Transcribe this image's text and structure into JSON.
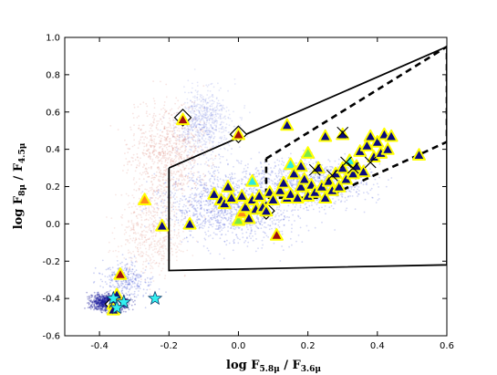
{
  "chart_data": {
    "type": "scatter",
    "title": "",
    "xlabel": {
      "prefix": "log F",
      "sub1": "5.8μ",
      "mid": " / F",
      "sub2": "3.6μ"
    },
    "ylabel": {
      "prefix": "log F",
      "sub1": "8μ",
      "mid": " / F",
      "sub2": "4.5μ"
    },
    "xlim": [
      -0.5,
      0.6
    ],
    "ylim": [
      -0.6,
      1.0
    ],
    "xticks": [
      "-0.4",
      "-0.2",
      "0.0",
      "0.2",
      "0.4",
      "0.6"
    ],
    "xtick_values": [
      -0.4,
      -0.2,
      0.0,
      0.2,
      0.4,
      0.6
    ],
    "yticks": [
      "1.0",
      "0.8",
      "0.6",
      "0.4",
      "0.2",
      "0.0",
      "-0.2",
      "-0.4",
      "-0.6"
    ],
    "ytick_values": [
      1.0,
      0.8,
      0.6,
      0.4,
      0.2,
      0.0,
      -0.2,
      -0.4,
      -0.6
    ],
    "grid": false,
    "legend": "none",
    "colors": {
      "background_cloud_blue": "#3a4fd6",
      "background_cloud_red": "#d46a5a",
      "triangle_edge": "#ffff00",
      "dark_navy": "#0a0a80",
      "cyan": "#2fe8e0",
      "orange": "#ff8c1a",
      "dark_red": "#a01010",
      "green": "#7ce84a",
      "star": "#33f0f0",
      "region_line": "#000000"
    },
    "regions": {
      "solid_wedge": [
        [
          -0.2,
          0.3
        ],
        [
          0.6,
          0.95
        ],
        [
          0.6,
          -0.22
        ],
        [
          -0.2,
          -0.25
        ],
        [
          -0.2,
          0.3
        ]
      ],
      "dashed_wedge": [
        [
          0.08,
          0.35
        ],
        [
          0.6,
          0.95
        ],
        [
          0.6,
          0.44
        ],
        [
          0.25,
          0.14
        ],
        [
          0.08,
          0.14
        ],
        [
          0.08,
          0.35
        ]
      ]
    },
    "triangles": [
      {
        "x": -0.36,
        "y": -0.43,
        "c": "dark_navy"
      },
      {
        "x": -0.36,
        "y": -0.46,
        "c": "dark_navy"
      },
      {
        "x": -0.35,
        "y": -0.38,
        "c": "dark_navy"
      },
      {
        "x": -0.34,
        "y": -0.27,
        "c": "dark_red"
      },
      {
        "x": -0.27,
        "y": 0.13,
        "c": "orange"
      },
      {
        "x": -0.22,
        "y": -0.01,
        "c": "dark_navy"
      },
      {
        "x": -0.16,
        "y": 0.56,
        "c": "dark_red"
      },
      {
        "x": -0.14,
        "y": 0.0,
        "c": "dark_navy"
      },
      {
        "x": -0.07,
        "y": 0.16,
        "c": "dark_navy"
      },
      {
        "x": -0.05,
        "y": 0.13,
        "c": "dark_navy"
      },
      {
        "x": -0.04,
        "y": 0.11,
        "c": "dark_navy"
      },
      {
        "x": -0.03,
        "y": 0.2,
        "c": "dark_navy"
      },
      {
        "x": -0.02,
        "y": 0.14,
        "c": "dark_navy"
      },
      {
        "x": 0.0,
        "y": 0.02,
        "c": "green"
      },
      {
        "x": 0.0,
        "y": 0.48,
        "c": "dark_red"
      },
      {
        "x": 0.01,
        "y": 0.06,
        "c": "orange"
      },
      {
        "x": 0.01,
        "y": 0.15,
        "c": "dark_navy"
      },
      {
        "x": 0.02,
        "y": 0.09,
        "c": "dark_navy"
      },
      {
        "x": 0.03,
        "y": 0.03,
        "c": "dark_navy"
      },
      {
        "x": 0.04,
        "y": 0.23,
        "c": "cyan"
      },
      {
        "x": 0.04,
        "y": 0.13,
        "c": "dark_navy"
      },
      {
        "x": 0.05,
        "y": 0.08,
        "c": "dark_navy"
      },
      {
        "x": 0.06,
        "y": 0.15,
        "c": "dark_navy"
      },
      {
        "x": 0.07,
        "y": 0.09,
        "c": "dark_navy"
      },
      {
        "x": 0.08,
        "y": 0.07,
        "c": "dark_navy"
      },
      {
        "x": 0.09,
        "y": 0.17,
        "c": "dark_navy"
      },
      {
        "x": 0.1,
        "y": 0.13,
        "c": "dark_navy"
      },
      {
        "x": 0.11,
        "y": -0.06,
        "c": "dark_red"
      },
      {
        "x": 0.12,
        "y": 0.18,
        "c": "dark_navy"
      },
      {
        "x": 0.13,
        "y": 0.22,
        "c": "dark_navy"
      },
      {
        "x": 0.14,
        "y": 0.14,
        "c": "dark_navy"
      },
      {
        "x": 0.14,
        "y": 0.53,
        "c": "dark_navy"
      },
      {
        "x": 0.15,
        "y": 0.32,
        "c": "cyan"
      },
      {
        "x": 0.15,
        "y": 0.16,
        "c": "dark_navy"
      },
      {
        "x": 0.16,
        "y": 0.27,
        "c": "dark_navy"
      },
      {
        "x": 0.17,
        "y": 0.14,
        "c": "dark_navy"
      },
      {
        "x": 0.18,
        "y": 0.2,
        "c": "dark_navy"
      },
      {
        "x": 0.18,
        "y": 0.31,
        "c": "dark_navy"
      },
      {
        "x": 0.19,
        "y": 0.24,
        "c": "dark_navy"
      },
      {
        "x": 0.2,
        "y": 0.15,
        "c": "dark_navy"
      },
      {
        "x": 0.2,
        "y": 0.38,
        "c": "green"
      },
      {
        "x": 0.21,
        "y": 0.21,
        "c": "dark_navy"
      },
      {
        "x": 0.22,
        "y": 0.17,
        "c": "dark_navy"
      },
      {
        "x": 0.23,
        "y": 0.3,
        "c": "dark_navy"
      },
      {
        "x": 0.24,
        "y": 0.2,
        "c": "dark_navy"
      },
      {
        "x": 0.25,
        "y": 0.14,
        "c": "dark_navy"
      },
      {
        "x": 0.25,
        "y": 0.47,
        "c": "dark_navy"
      },
      {
        "x": 0.26,
        "y": 0.23,
        "c": "dark_navy"
      },
      {
        "x": 0.27,
        "y": 0.18,
        "c": "dark_navy"
      },
      {
        "x": 0.28,
        "y": 0.27,
        "c": "dark_navy"
      },
      {
        "x": 0.29,
        "y": 0.2,
        "c": "dark_navy"
      },
      {
        "x": 0.3,
        "y": 0.48,
        "c": "dark_navy"
      },
      {
        "x": 0.3,
        "y": 0.3,
        "c": "dark_navy"
      },
      {
        "x": 0.31,
        "y": 0.24,
        "c": "dark_navy"
      },
      {
        "x": 0.32,
        "y": 0.34,
        "c": "cyan"
      },
      {
        "x": 0.33,
        "y": 0.27,
        "c": "dark_navy"
      },
      {
        "x": 0.34,
        "y": 0.31,
        "c": "dark_navy"
      },
      {
        "x": 0.35,
        "y": 0.39,
        "c": "dark_navy"
      },
      {
        "x": 0.36,
        "y": 0.28,
        "c": "dark_navy"
      },
      {
        "x": 0.37,
        "y": 0.42,
        "c": "dark_navy"
      },
      {
        "x": 0.38,
        "y": 0.47,
        "c": "dark_navy"
      },
      {
        "x": 0.39,
        "y": 0.36,
        "c": "dark_navy"
      },
      {
        "x": 0.4,
        "y": 0.44,
        "c": "dark_navy"
      },
      {
        "x": 0.41,
        "y": 0.38,
        "c": "dark_navy"
      },
      {
        "x": 0.42,
        "y": 0.48,
        "c": "dark_navy"
      },
      {
        "x": 0.43,
        "y": 0.4,
        "c": "dark_navy"
      },
      {
        "x": 0.44,
        "y": 0.47,
        "c": "dark_navy"
      },
      {
        "x": 0.52,
        "y": 0.37,
        "c": "dark_navy"
      }
    ],
    "diamonds": [
      {
        "x": -0.16,
        "y": 0.57
      },
      {
        "x": 0.0,
        "y": 0.48
      },
      {
        "x": 0.08,
        "y": 0.07
      },
      {
        "x": -0.36,
        "y": -0.43
      }
    ],
    "crosses": [
      {
        "x": 0.3,
        "y": 0.49
      },
      {
        "x": 0.31,
        "y": 0.33
      },
      {
        "x": 0.33,
        "y": 0.3
      },
      {
        "x": 0.27,
        "y": 0.26
      },
      {
        "x": 0.22,
        "y": 0.29
      },
      {
        "x": 0.38,
        "y": 0.33
      }
    ],
    "stars": [
      {
        "x": -0.36,
        "y": -0.4
      },
      {
        "x": -0.33,
        "y": -0.42
      },
      {
        "x": -0.35,
        "y": -0.45
      },
      {
        "x": -0.24,
        "y": -0.4
      }
    ]
  }
}
